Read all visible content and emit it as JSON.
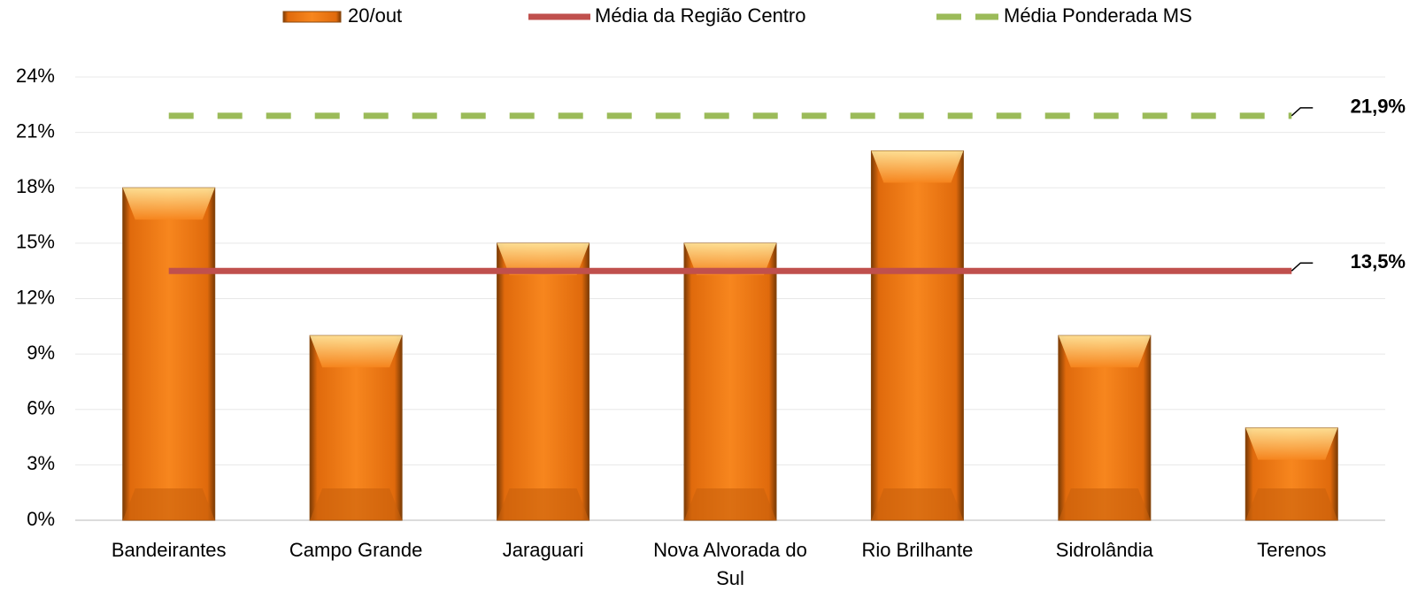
{
  "chart_data": {
    "type": "bar",
    "categories": [
      "Bandeirantes",
      "Campo Grande",
      "Jaraguari",
      "Nova Alvorada do Sul",
      "Rio Brilhante",
      "Sidrolândia",
      "Terenos"
    ],
    "series": [
      {
        "name": "20/out",
        "type": "bar",
        "color": "#f07a12",
        "values": [
          18,
          10,
          15,
          15,
          20,
          10,
          5
        ]
      },
      {
        "name": "Média da Região Centro",
        "type": "line",
        "color": "#c0504d",
        "value": 13.5,
        "value_label": "13,5%"
      },
      {
        "name": "Média Ponderada MS",
        "type": "dashed",
        "color": "#9bbb59",
        "value": 21.9,
        "value_label": "21,9%"
      }
    ],
    "ylim": [
      0,
      24
    ],
    "yticks": [
      {
        "value": 0,
        "label": "0%"
      },
      {
        "value": 3,
        "label": "3%"
      },
      {
        "value": 6,
        "label": "6%"
      },
      {
        "value": 9,
        "label": "9%"
      },
      {
        "value": 12,
        "label": "12%"
      },
      {
        "value": 15,
        "label": "15%"
      },
      {
        "value": 18,
        "label": "18%"
      },
      {
        "value": 21,
        "label": "21%"
      },
      {
        "value": 24,
        "label": "24%"
      }
    ],
    "grid": true,
    "legend": "top"
  }
}
